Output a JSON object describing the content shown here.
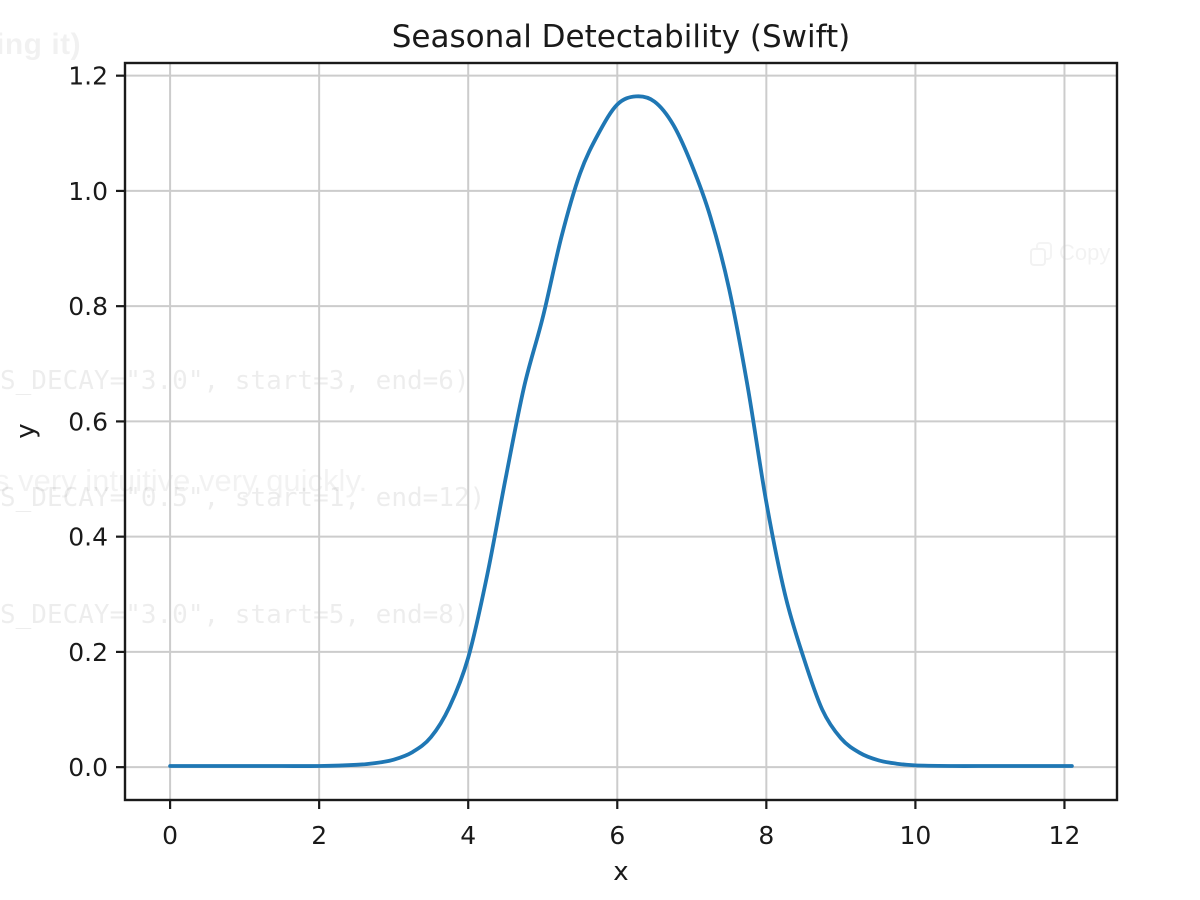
{
  "page": {
    "background": "#ffffff"
  },
  "ghost": {
    "fragment_top": "ing it)",
    "code_lines": [
      "S_DECAY=\"3.0\", start=3, end=6)",
      "S_DECAY=\"0.5\", start=1, end=12)",
      "S_DECAY=\"3.0\", start=5, end=8)"
    ],
    "sentence": "s very intuitive very quickly.",
    "copy": {
      "label": "Copy"
    }
  },
  "chart_data": {
    "type": "line",
    "title": "Seasonal Detectability (Swift)",
    "xlabel": "x",
    "ylabel": "y",
    "xlim": [
      -0.605,
      12.705
    ],
    "ylim": [
      -0.057,
      1.222
    ],
    "xticks": {
      "values": [
        0,
        2,
        4,
        6,
        8,
        10,
        12
      ],
      "labels": [
        "0",
        "2",
        "4",
        "6",
        "8",
        "10",
        "12"
      ]
    },
    "yticks": {
      "values": [
        0.0,
        0.2,
        0.4,
        0.6,
        0.8,
        1.0,
        1.2
      ],
      "labels": [
        "0.0",
        "0.2",
        "0.4",
        "0.6",
        "0.8",
        "1.0",
        "1.2"
      ]
    },
    "grid": true,
    "legend": null,
    "colors": {
      "line": "#1f77b4",
      "grid": "#cccccc",
      "spine": "#1a1a1a",
      "text": "#1a1a1a"
    },
    "peak": {
      "x": 6.3,
      "y": 1.164
    },
    "series": [
      {
        "name": "seasonal_detectability",
        "x": [
          0,
          0.5,
          1,
          1.5,
          2,
          2.5,
          2.75,
          3,
          3.25,
          3.5,
          3.75,
          4,
          4.25,
          4.5,
          4.75,
          5,
          5.25,
          5.5,
          5.75,
          6,
          6.25,
          6.5,
          6.75,
          7,
          7.25,
          7.5,
          7.75,
          8,
          8.25,
          8.5,
          8.75,
          9,
          9.25,
          9.5,
          9.75,
          10,
          10.5,
          11,
          11.5,
          12,
          12.1
        ],
        "y": [
          0.002,
          0.002,
          0.002,
          0.002,
          0.002,
          0.004,
          0.007,
          0.013,
          0.026,
          0.052,
          0.105,
          0.19,
          0.33,
          0.5,
          0.66,
          0.78,
          0.92,
          1.03,
          1.1,
          1.15,
          1.164,
          1.155,
          1.115,
          1.045,
          0.955,
          0.83,
          0.66,
          0.46,
          0.3,
          0.19,
          0.1,
          0.05,
          0.025,
          0.012,
          0.006,
          0.003,
          0.002,
          0.002,
          0.002,
          0.002,
          0.002
        ]
      }
    ]
  }
}
